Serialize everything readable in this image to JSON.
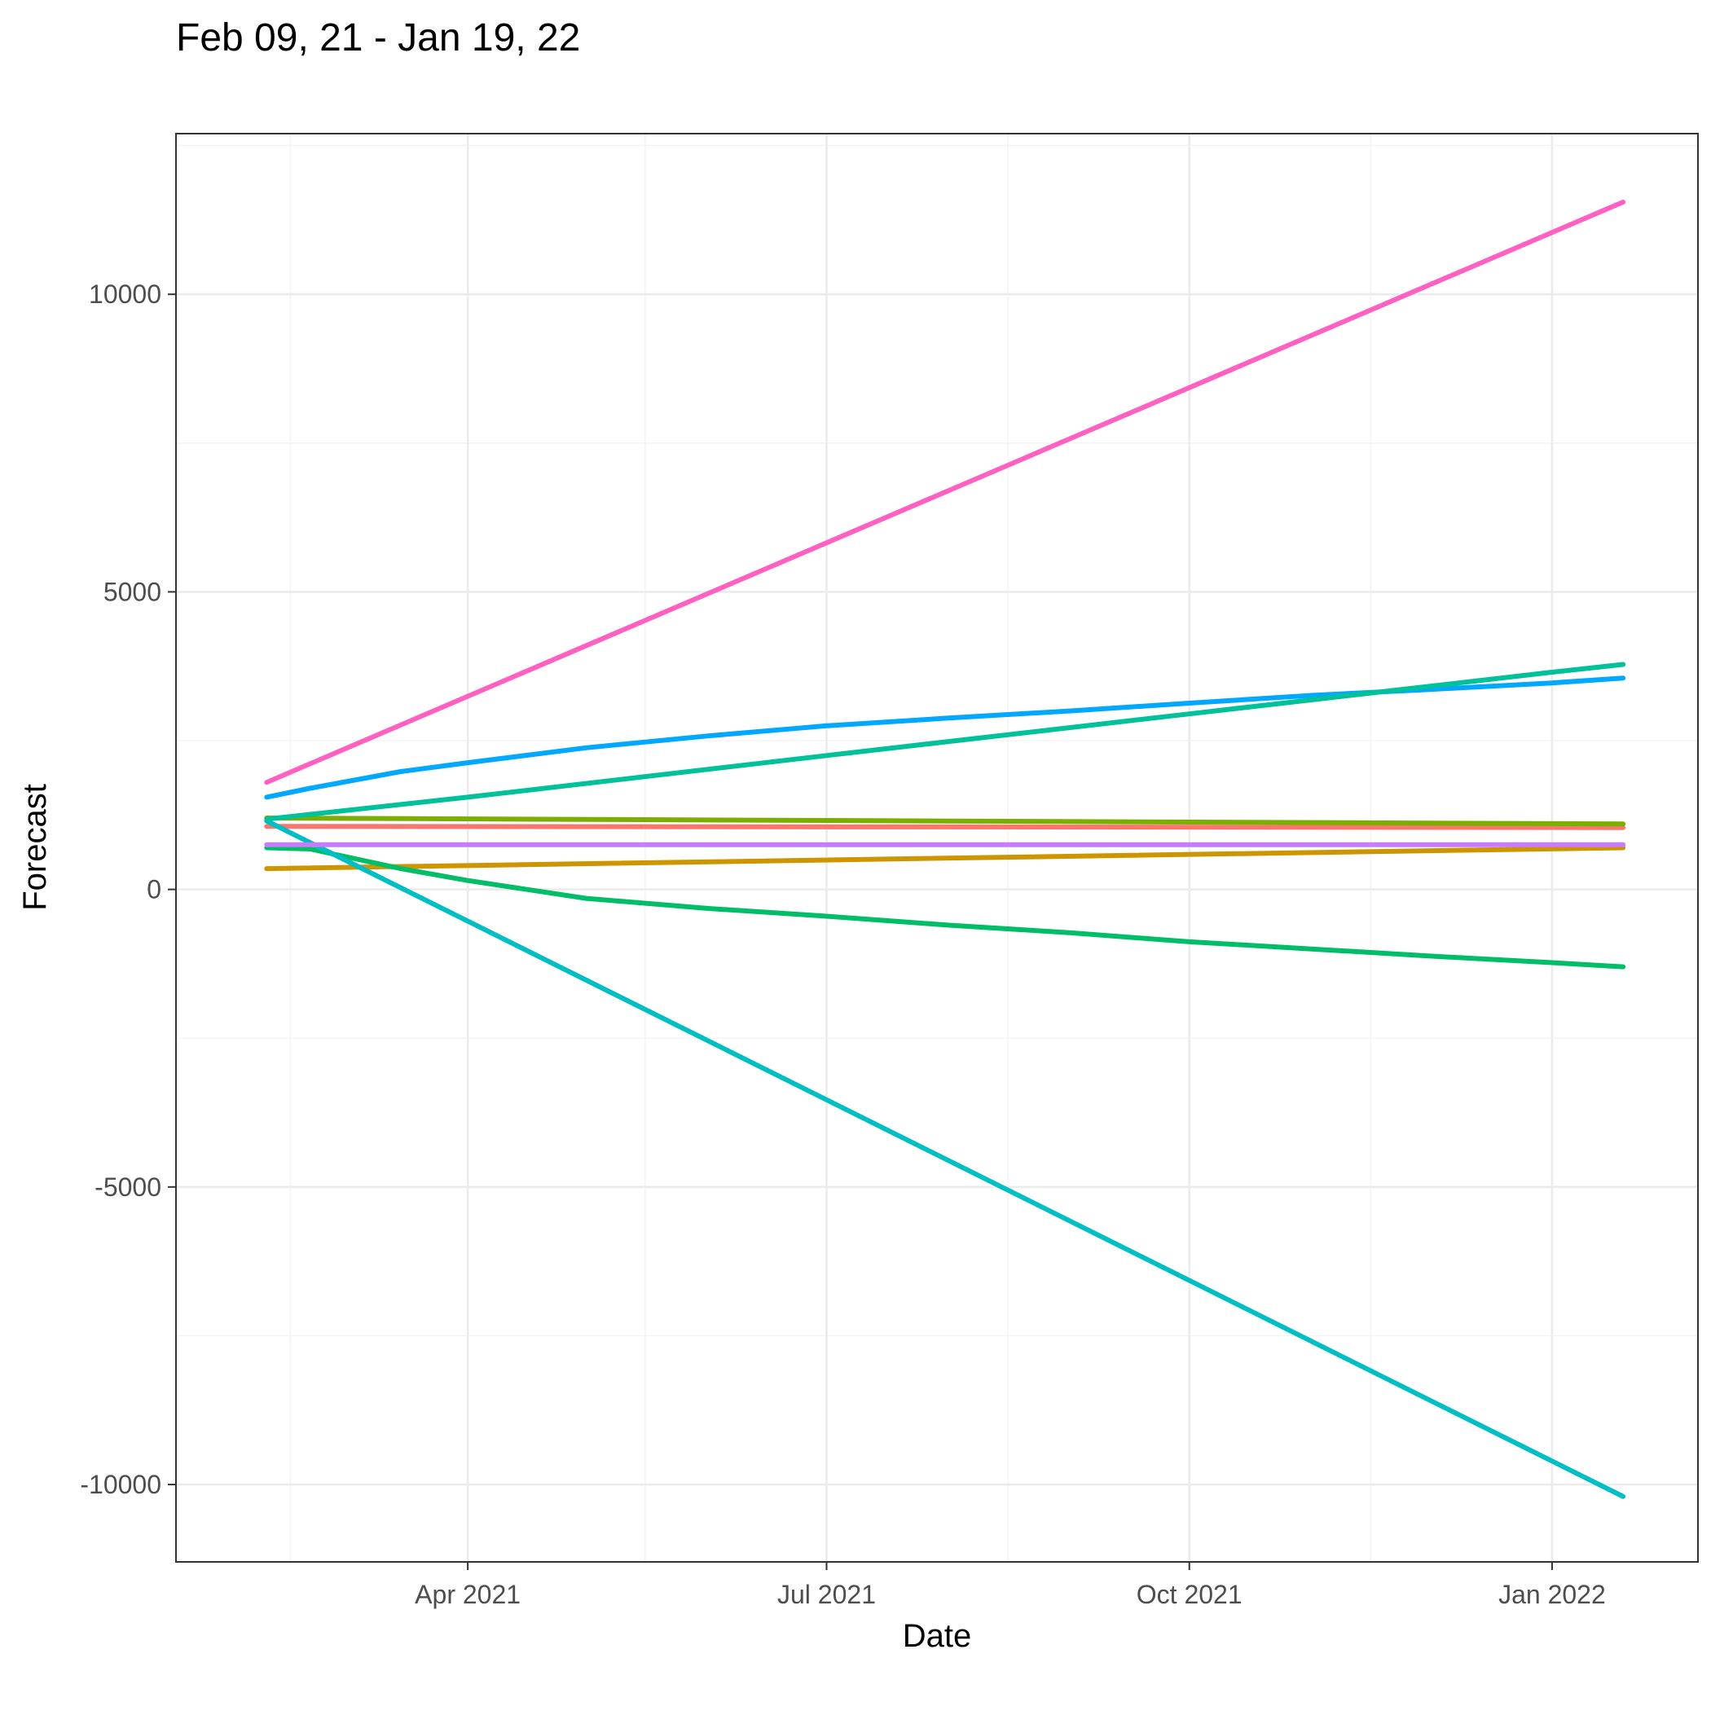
{
  "chart_data": {
    "type": "line",
    "title": "Feb 09, 21 - Jan 19, 22",
    "xlabel": "Date",
    "ylabel": "Forecast",
    "xlim": [
      "2021-01-17",
      "2022-02-07"
    ],
    "ylim": [
      -11300,
      12700
    ],
    "x_ticks": [
      {
        "date": "2021-04-01",
        "label": "Apr 2021"
      },
      {
        "date": "2021-07-01",
        "label": "Jul 2021"
      },
      {
        "date": "2021-10-01",
        "label": "Oct 2021"
      },
      {
        "date": "2022-01-01",
        "label": "Jan 2022"
      }
    ],
    "x_minor_ticks": [
      "2021-02-15",
      "2021-05-16",
      "2021-08-16",
      "2021-11-16"
    ],
    "y_ticks": [
      -10000,
      -5000,
      0,
      5000,
      10000
    ],
    "y_minor_ticks": [
      -7500,
      -2500,
      2500,
      7500,
      12500
    ],
    "grid": true,
    "legend": "none",
    "series": [
      {
        "color": "#F8766D",
        "x": [
          "2021-02-09",
          "2022-01-19"
        ],
        "values": [
          1060,
          1040
        ]
      },
      {
        "color": "#CD9600",
        "x": [
          "2021-02-09",
          "2022-01-19"
        ],
        "values": [
          350,
          700
        ]
      },
      {
        "color": "#7CAE00",
        "x": [
          "2021-02-09",
          "2022-01-19"
        ],
        "values": [
          1200,
          1100
        ]
      },
      {
        "color": "#00BE67",
        "x": [
          "2021-02-09",
          "2021-02-20",
          "2021-03-15",
          "2021-04-01",
          "2021-05-01",
          "2021-06-01",
          "2021-07-01",
          "2021-08-01",
          "2021-09-01",
          "2021-10-01",
          "2021-11-01",
          "2021-12-01",
          "2022-01-01",
          "2022-01-19"
        ],
        "values": [
          700,
          680,
          350,
          150,
          -150,
          -320,
          -450,
          -600,
          -730,
          -880,
          -1000,
          -1120,
          -1230,
          -1300
        ]
      },
      {
        "color": "#00BFC4",
        "x": [
          "2021-02-09",
          "2022-01-19"
        ],
        "values": [
          1150,
          -10200
        ]
      },
      {
        "color": "#00A9FF",
        "x": [
          "2021-02-09",
          "2021-02-20",
          "2021-03-15",
          "2021-04-01",
          "2021-05-01",
          "2021-06-01",
          "2021-07-01",
          "2021-08-01",
          "2021-09-01",
          "2021-10-01",
          "2021-11-01",
          "2021-12-01",
          "2022-01-01",
          "2022-01-19"
        ],
        "values": [
          1550,
          1700,
          1980,
          2130,
          2380,
          2580,
          2750,
          2880,
          3000,
          3130,
          3260,
          3360,
          3470,
          3550
        ]
      },
      {
        "color": "#00C19A",
        "x": [
          "2021-02-09",
          "2021-04-01",
          "2021-07-01",
          "2021-10-01",
          "2022-01-01",
          "2022-01-19"
        ],
        "values": [
          1180,
          1550,
          2250,
          2950,
          3650,
          3780
        ]
      },
      {
        "color": "#FF61C3",
        "x": [
          "2021-02-09",
          "2022-01-19"
        ],
        "values": [
          1800,
          11550
        ]
      },
      {
        "color": "#C77CFF",
        "x": [
          "2021-02-09",
          "2022-01-19"
        ],
        "values": [
          750,
          750
        ]
      }
    ]
  }
}
